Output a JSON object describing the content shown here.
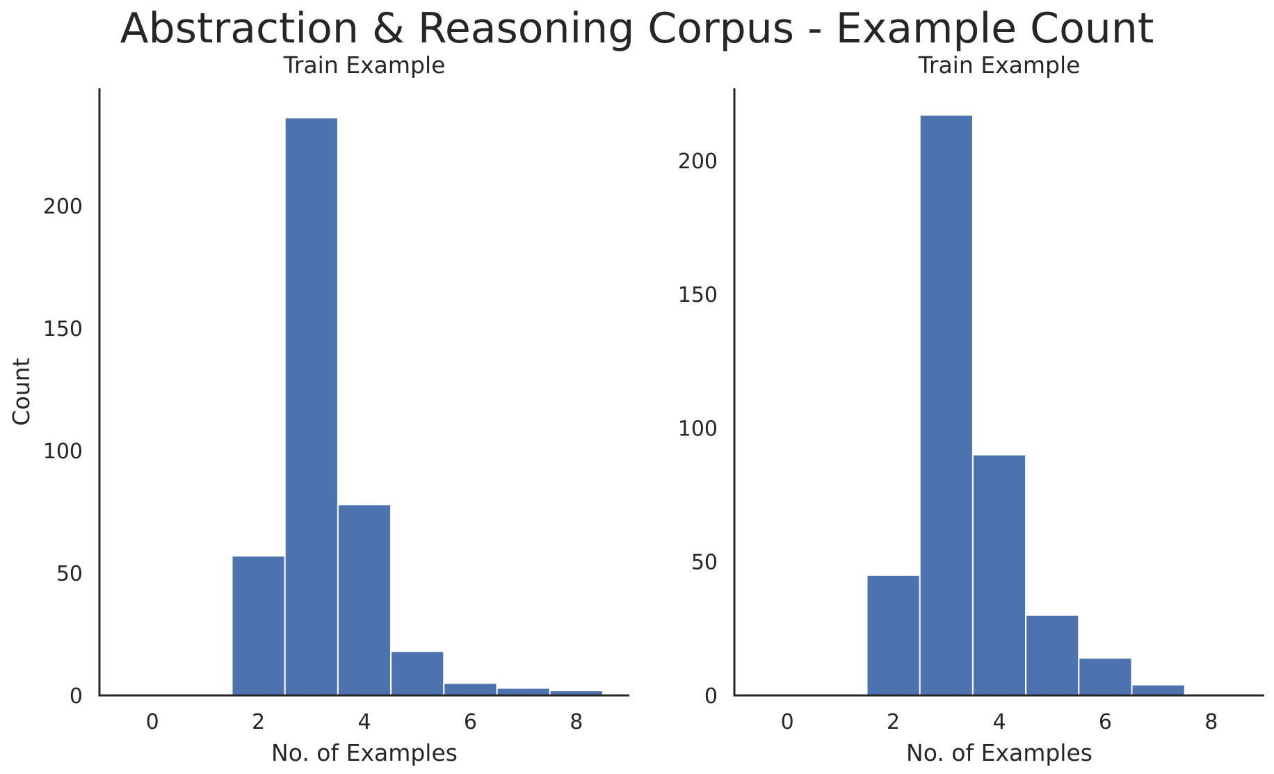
{
  "title": "Abstraction & Reasoning Corpus - Example Count",
  "colors": {
    "bar": "#4c72b0",
    "axis": "#262626",
    "text": "#262626"
  },
  "chart_data": [
    {
      "type": "bar",
      "title": "Train Example",
      "xlabel": "No. of Examples",
      "ylabel": "Count",
      "xlim": [
        -1,
        9
      ],
      "ylim": [
        0,
        248
      ],
      "xticks": [
        0,
        2,
        4,
        6,
        8
      ],
      "yticks": [
        0,
        50,
        100,
        150,
        200
      ],
      "bin_width": 1,
      "x": [
        2,
        3,
        4,
        5,
        6,
        7,
        8
      ],
      "values": [
        57,
        236,
        78,
        18,
        5,
        3,
        2
      ]
    },
    {
      "type": "bar",
      "title": "Train Example",
      "xlabel": "No. of Examples",
      "ylabel": "",
      "xlim": [
        -1,
        9
      ],
      "ylim": [
        0,
        227
      ],
      "xticks": [
        0,
        2,
        4,
        6,
        8
      ],
      "yticks": [
        0,
        50,
        100,
        150,
        200
      ],
      "bin_width": 1,
      "x": [
        2,
        3,
        4,
        5,
        6,
        7
      ],
      "values": [
        45,
        217,
        90,
        30,
        14,
        4
      ]
    }
  ]
}
